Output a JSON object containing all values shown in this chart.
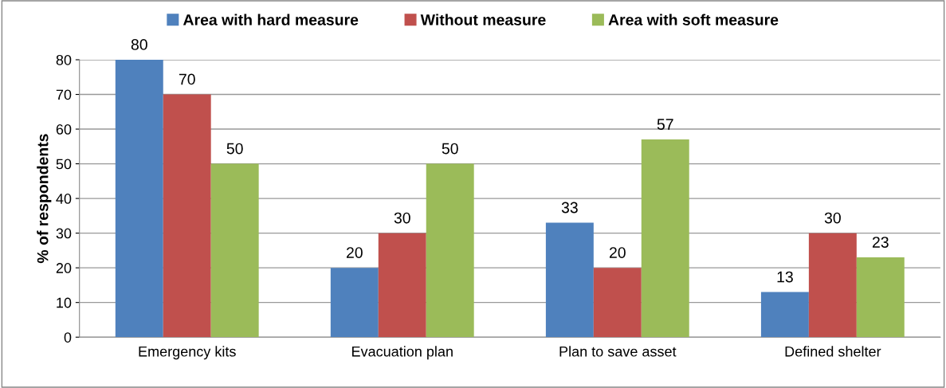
{
  "chart_data": {
    "type": "bar",
    "ylabel": "% of respondents",
    "categories": [
      "Emergency kits",
      "Evacuation plan",
      "Plan to save asset",
      "Defined shelter"
    ],
    "series": [
      {
        "name": "Area with hard measure",
        "color": "#4f81bd",
        "values": [
          80,
          20,
          33,
          13
        ]
      },
      {
        "name": "Without measure",
        "color": "#c0504d",
        "values": [
          70,
          30,
          20,
          30
        ]
      },
      {
        "name": "Area with soft measure",
        "color": "#9bbb59",
        "values": [
          50,
          50,
          57,
          23
        ]
      }
    ],
    "ylim": [
      0,
      80
    ],
    "yticks": [
      0,
      10,
      20,
      30,
      40,
      50,
      60,
      70,
      80
    ],
    "grid": "y",
    "legend": "top",
    "data_labels": true
  }
}
